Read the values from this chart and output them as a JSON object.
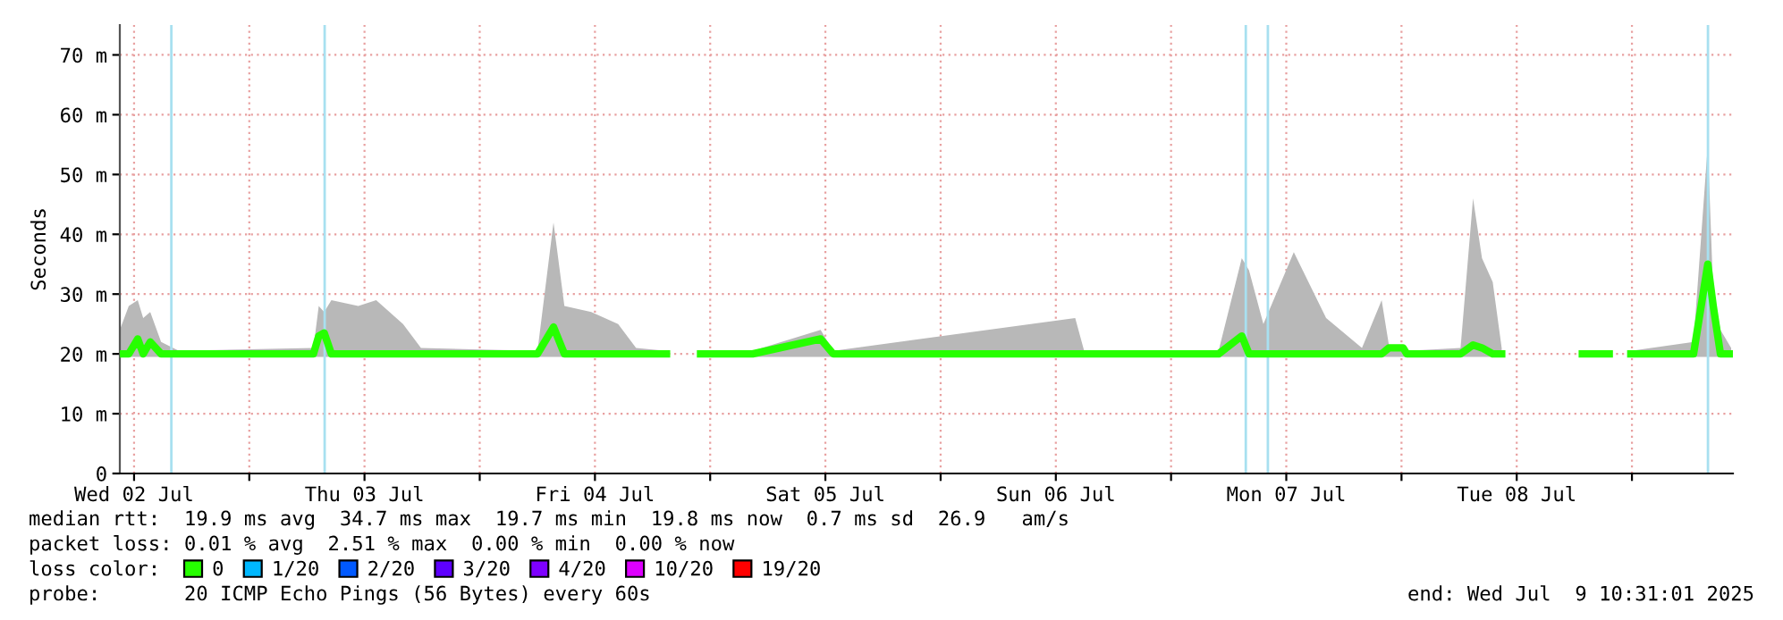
{
  "chart_data": {
    "type": "line",
    "ylabel": "Seconds",
    "x": [
      "2025-07-02T10:31",
      "2025-07-02T11:27",
      "2025-07-02T12:23",
      "2025-07-02T12:57",
      "2025-07-02T13:41",
      "2025-07-02T14:49",
      "2025-07-02T16:41",
      "2025-07-03T06:41",
      "2025-07-03T07:14",
      "2025-07-03T07:48",
      "2025-07-03T08:33",
      "2025-07-03T11:21",
      "2025-07-03T13:13",
      "2025-07-03T16:01",
      "2025-07-03T17:53",
      "2025-07-04T06:01",
      "2025-07-04T07:41",
      "2025-07-04T08:49",
      "2025-07-04T11:37",
      "2025-07-04T14:25",
      "2025-07-04T16:17",
      "2025-07-04T19:27",
      "2025-07-04T19:38",
      "2025-07-04T23:00",
      "2025-07-05T04:25",
      "2025-07-05T11:30",
      "2025-07-05T12:49",
      "2025-07-06T14:01",
      "2025-07-06T14:57",
      "2025-07-07T04:57",
      "2025-07-07T07:22",
      "2025-07-07T08:07",
      "2025-07-07T09:37",
      "2025-07-07T12:47",
      "2025-07-07T16:09",
      "2025-07-07T19:53",
      "2025-07-07T21:56",
      "2025-07-07T22:41",
      "2025-07-08T00:10",
      "2025-07-08T00:33",
      "2025-07-08T06:09",
      "2025-07-08T07:27",
      "2025-07-08T08:23",
      "2025-07-08T09:30",
      "2025-07-08T10:26",
      "2025-07-08T10:37",
      "2025-07-08T18:50",
      "2025-07-08T21:38",
      "2025-07-08T21:49",
      "2025-07-08T23:53",
      "2025-07-09T06:25",
      "2025-07-09T07:54",
      "2025-07-09T08:28",
      "2025-07-09T09:13",
      "2025-07-09T10:20"
    ],
    "series": [
      {
        "name": "0",
        "color": "#26ff00",
        "values": [
          20,
          20,
          22.5,
          20,
          22,
          20,
          20,
          20,
          23,
          23.5,
          20,
          20,
          20,
          20,
          20,
          20,
          24.5,
          20,
          20,
          20,
          20,
          20,
          null,
          20,
          20,
          22.5,
          20,
          20,
          20,
          20,
          23,
          20,
          20,
          20,
          20,
          20,
          20,
          21,
          21,
          20,
          20,
          21.5,
          21,
          20,
          20,
          null,
          20,
          20,
          null,
          20,
          20,
          35,
          28,
          20,
          20
        ],
        "upper": [
          24,
          28,
          29,
          26,
          27,
          22,
          20.5,
          21,
          28,
          27,
          29,
          28,
          29,
          25,
          21,
          20.5,
          42,
          28,
          27,
          25,
          21,
          20.5,
          null,
          20.5,
          20.5,
          24,
          20.5,
          26,
          20.5,
          20.5,
          36,
          34,
          25,
          37,
          26,
          21,
          29,
          21.5,
          21.5,
          20.5,
          21,
          46,
          36,
          32,
          21,
          null,
          20.5,
          20.5,
          null,
          20.5,
          22,
          55,
          30,
          24,
          21
        ],
        "lower": [
          19.5,
          19.5,
          19.5,
          19.5,
          19.5,
          19.5,
          19.5,
          19.5,
          19.5,
          19.5,
          19.5,
          19.5,
          19.5,
          19.5,
          19.5,
          19.5,
          19.5,
          19.5,
          19.5,
          19.5,
          19.5,
          19.5,
          null,
          19.5,
          19.5,
          19.5,
          19.5,
          19.5,
          19.5,
          19.5,
          19.5,
          19.5,
          19.5,
          19.5,
          19.5,
          19.5,
          19.5,
          19.5,
          19.5,
          19.5,
          19.5,
          19.5,
          19.5,
          19.5,
          19.5,
          null,
          19.5,
          19.5,
          null,
          19.5,
          19.5,
          19.5,
          19.5,
          19.5,
          19.5
        ]
      },
      {
        "name": "1/20",
        "color": "#00b8ff",
        "values": [
          null,
          null,
          null,
          null,
          null,
          null,
          null,
          null,
          null,
          null,
          null,
          null,
          null,
          null,
          null,
          null,
          null,
          null,
          null,
          null,
          null,
          null,
          null,
          null,
          null,
          null,
          null,
          null,
          null,
          null,
          null,
          null,
          null,
          null,
          null,
          null,
          null,
          null,
          null,
          null,
          null,
          null,
          null,
          null,
          null,
          null,
          null,
          null,
          null,
          null,
          null,
          null,
          null,
          null,
          null
        ]
      },
      {
        "name": "2/20",
        "color": "#0059ff",
        "values": [
          null,
          null,
          null,
          null,
          null,
          null,
          null,
          null,
          null,
          null,
          null,
          null,
          null,
          null,
          null,
          null,
          null,
          null,
          null,
          null,
          null,
          null,
          null,
          null,
          null,
          null,
          null,
          null,
          null,
          null,
          null,
          null,
          null,
          null,
          null,
          null,
          null,
          null,
          null,
          null,
          null,
          null,
          null,
          null,
          null,
          null,
          null,
          null,
          null,
          null,
          null,
          null,
          null,
          null,
          null
        ]
      },
      {
        "name": "3/20",
        "color": "#5e00ff",
        "values": [
          null,
          null,
          null,
          null,
          null,
          null,
          null,
          null,
          null,
          null,
          null,
          null,
          null,
          null,
          null,
          null,
          null,
          null,
          null,
          null,
          null,
          null,
          null,
          null,
          null,
          null,
          null,
          null,
          null,
          null,
          null,
          null,
          null,
          null,
          null,
          null,
          null,
          null,
          null,
          null,
          null,
          null,
          null,
          null,
          null,
          null,
          null,
          null,
          null,
          null,
          null,
          null,
          null,
          null,
          null
        ]
      },
      {
        "name": "4/20",
        "color": "#7e00ff",
        "values": [
          null,
          null,
          null,
          null,
          null,
          null,
          null,
          null,
          null,
          null,
          null,
          null,
          null,
          null,
          null,
          null,
          null,
          null,
          null,
          null,
          null,
          null,
          null,
          null,
          null,
          null,
          null,
          null,
          null,
          null,
          null,
          null,
          null,
          null,
          null,
          null,
          null,
          null,
          null,
          null,
          null,
          null,
          null,
          null,
          null,
          null,
          null,
          null,
          null,
          null,
          null,
          null,
          null,
          null,
          null
        ]
      },
      {
        "name": "10/20",
        "color": "#dd00ff",
        "values": [
          null,
          null,
          null,
          null,
          null,
          null,
          null,
          null,
          null,
          null,
          null,
          null,
          null,
          null,
          null,
          null,
          null,
          null,
          null,
          null,
          null,
          null,
          null,
          null,
          null,
          null,
          null,
          null,
          null,
          null,
          null,
          null,
          null,
          null,
          null,
          null,
          null,
          null,
          null,
          null,
          null,
          null,
          null,
          null,
          null,
          null,
          null,
          null,
          null,
          null,
          null,
          null,
          null,
          null,
          null
        ]
      },
      {
        "name": "19/20",
        "color": "#ff0000",
        "values": [
          null,
          null,
          null,
          null,
          null,
          null,
          null,
          null,
          null,
          null,
          null,
          null,
          null,
          null,
          null,
          null,
          null,
          null,
          null,
          null,
          null,
          null,
          null,
          null,
          null,
          null,
          null,
          null,
          null,
          null,
          null,
          null,
          null,
          null,
          null,
          null,
          null,
          null,
          null,
          null,
          null,
          null,
          null,
          null,
          null,
          null,
          null,
          null,
          null,
          null,
          null,
          null,
          null,
          null,
          null
        ]
      }
    ],
    "legend": "bottom",
    "legend_title": "loss color:",
    "xlim": [
      "2025-07-02T10:31",
      "2025-07-09T10:31"
    ],
    "xticks": [
      {
        "value": "2025-07-02T12:00",
        "label": "Wed 02 Jul"
      },
      {
        "value": "2025-07-03T00:00",
        "label": null
      },
      {
        "value": "2025-07-03T12:00",
        "label": "Thu 03 Jul"
      },
      {
        "value": "2025-07-04T00:00",
        "label": null
      },
      {
        "value": "2025-07-04T12:00",
        "label": "Fri 04 Jul"
      },
      {
        "value": "2025-07-05T00:00",
        "label": null
      },
      {
        "value": "2025-07-05T12:00",
        "label": "Sat 05 Jul"
      },
      {
        "value": "2025-07-06T00:00",
        "label": null
      },
      {
        "value": "2025-07-06T12:00",
        "label": "Sun 06 Jul"
      },
      {
        "value": "2025-07-07T00:00",
        "label": null
      },
      {
        "value": "2025-07-07T12:00",
        "label": "Mon 07 Jul"
      },
      {
        "value": "2025-07-08T00:00",
        "label": null
      },
      {
        "value": "2025-07-08T12:00",
        "label": "Tue 08 Jul"
      },
      {
        "value": "2025-07-09T00:00",
        "label": null
      }
    ],
    "ylim": [
      0,
      75
    ],
    "yticks": [
      0,
      {
        "value": 10,
        "label": "10 m"
      },
      {
        "value": 20,
        "label": "20 m"
      },
      {
        "value": 30,
        "label": "30 m"
      },
      {
        "value": 40,
        "label": "40 m"
      },
      {
        "value": 50,
        "label": "50 m"
      },
      {
        "value": 60,
        "label": "60 m"
      },
      {
        "value": 70,
        "label": "70 m"
      }
    ],
    "grid": true,
    "ref_lines": [
      {
        "axis": "x",
        "value": "2025-07-02T15:53",
        "color": "#a8e0f0"
      },
      {
        "axis": "x",
        "value": "2025-07-03T07:51",
        "color": "#a8e0f0"
      },
      {
        "axis": "x",
        "value": "2025-07-07T07:47",
        "color": "#a8e0f0"
      },
      {
        "axis": "x",
        "value": "2025-07-07T10:05",
        "color": "#a8e0f0"
      },
      {
        "axis": "x",
        "value": "2025-07-09T07:55",
        "color": "#a8e0f0"
      }
    ],
    "annotations": [
      "median rtt:  19.9 ms avg  34.7 ms max  19.7 ms min  19.8 ms now  0.7 ms sd  26.9   am/s",
      "packet loss: 0.01 % avg  2.51 % max  0.00 % min  0.00 % now",
      "probe:       20 ICMP Echo Pings (56 Bytes) every 60s",
      "end: Wed Jul  9 10:31:01 2025"
    ]
  }
}
